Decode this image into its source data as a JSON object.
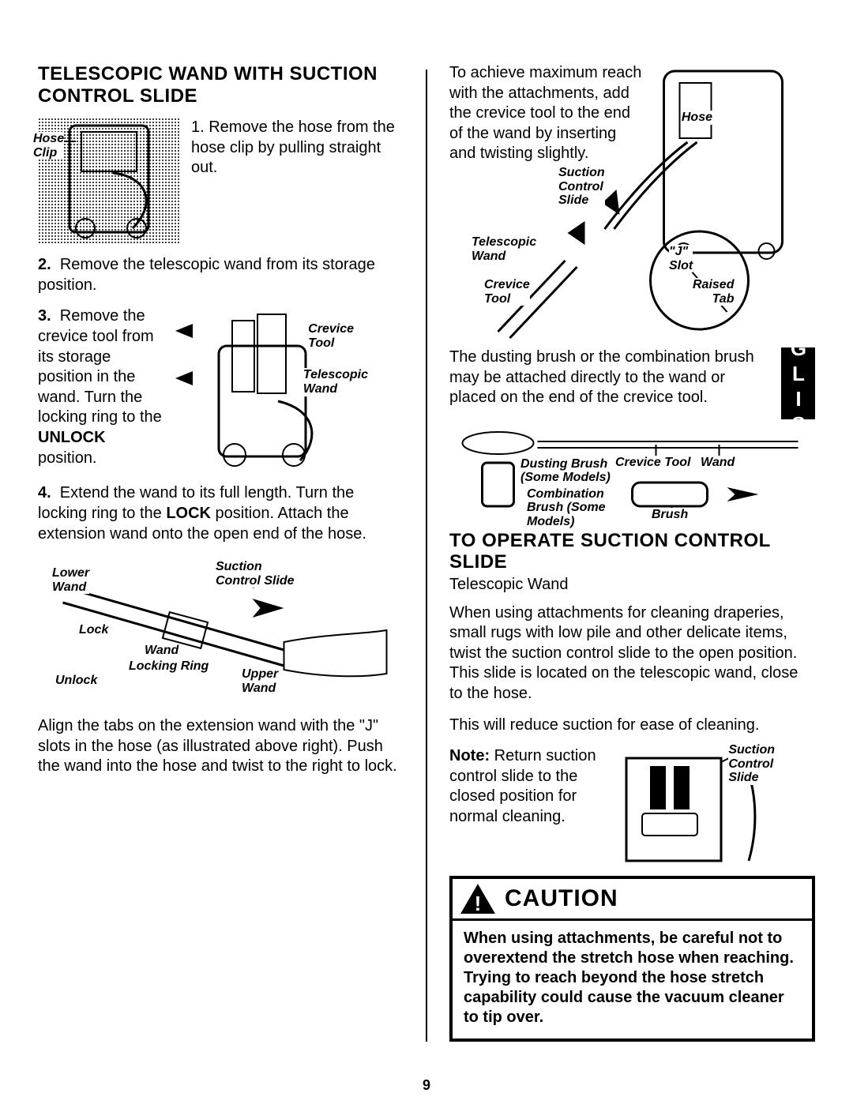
{
  "page_number": "9",
  "language_tab": "ENGLISH",
  "left": {
    "title": "TELESCOPIC WAND WITH SUCTION CONTROL SLIDE",
    "fig1_labels": {
      "hose_clip": "Hose\nClip"
    },
    "step1": "1. Remove the hose from the hose clip by pulling straight out.",
    "step2": "2.  Remove the telescopic wand from its storage position.",
    "step3_text": "3.  Remove the crevice tool from its storage position in the wand. Turn the locking ring to the UNLOCK position.",
    "step3_inline_bold": "UNLOCK",
    "fig2_labels": {
      "crevice_tool": "Crevice\nTool",
      "telescopic_wand": "Telescopic\nWand"
    },
    "step4": "4.  Extend the wand to its full length. Turn the locking ring to the LOCK position. Attach the extension wand onto the open end of the hose.",
    "step4_inline_bold": "LOCK",
    "fig3_labels": {
      "lower_wand": "Lower\nWand",
      "suction_control_slide": "Suction\nControl Slide",
      "lock": "Lock",
      "wand": "Wand",
      "locking_ring": "Locking Ring",
      "unlock": "Unlock",
      "upper_wand": "Upper\nWand"
    },
    "align_para": "Align the tabs on the extension wand with the \"J\" slots in the hose (as illustrated above right). Push the wand into the hose and twist to the right to lock."
  },
  "right": {
    "reach_para": "To achieve maximum reach with the attachments, add the crevice tool to the end of the wand by inserting and twisting slightly.",
    "fig4_labels": {
      "hose": "Hose",
      "suction_control_slide": "Suction\nControl\nSlide",
      "telescopic_wand": "Telescopic\nWand",
      "crevice_tool": "Crevice\nTool",
      "j_slot": "\"J\"\nSlot",
      "raised_tab": "Raised\nTab"
    },
    "dusting_para": "The dusting brush or the combination brush may be attached directly to the wand or placed on the end of the crevice tool.",
    "fig5_labels": {
      "dusting_brush": "Dusting Brush\n(Some Models)",
      "crevice_tool": "Crevice Tool",
      "wand": "Wand",
      "combination_brush": "Combination\nBrush (Some\nModels)",
      "brush": "Brush"
    },
    "operate_title": "TO OPERATE SUCTION CONTROL SLIDE",
    "operate_sub": "Telescopic Wand",
    "operate_para1": "When using attachments for cleaning draperies, small rugs with low pile and other delicate items, twist the suction control slide to the open position. This slide is located on the telescopic wand, close to the hose.",
    "operate_para2": "This will reduce suction for ease of cleaning.",
    "note_bold": "Note:",
    "note_text": " Return suction control slide to the closed position for normal cleaning.",
    "fig6_labels": {
      "suction_control_slide": "Suction\nControl\nSlide"
    },
    "caution_title": "CAUTION",
    "caution_body": "When using attachments, be careful not to overextend the stretch hose when reaching. Trying to reach beyond the hose stretch capability could cause the vacuum cleaner to tip over."
  },
  "style": {
    "body_fontsize": 20,
    "heading_fontsize": 24,
    "label_fontsize": 16,
    "colors": {
      "text": "#000000",
      "background": "#ffffff"
    }
  }
}
